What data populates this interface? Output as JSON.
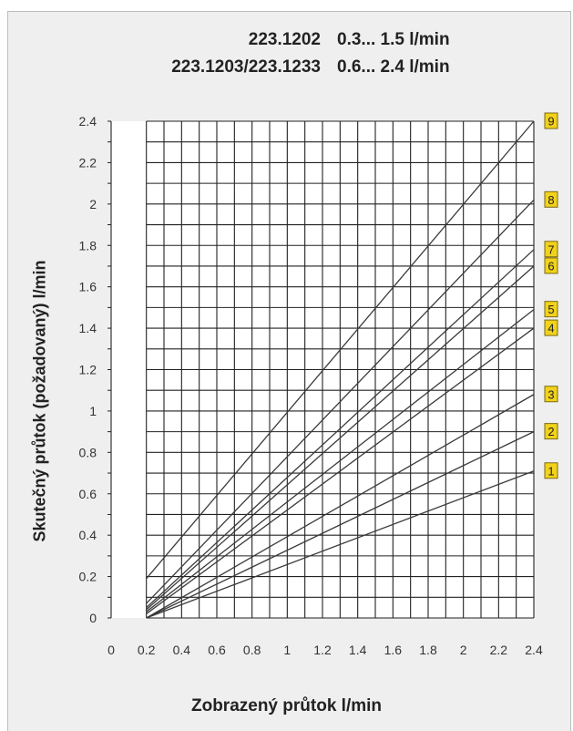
{
  "header": {
    "rows": [
      {
        "model": "223.1202",
        "range": "0.3... 1.5 l/min"
      },
      {
        "model": "223.1203/223.1233",
        "range": "0.6... 2.4 l/min"
      }
    ]
  },
  "chart_data": {
    "type": "line",
    "xlabel": "Zobrazený průtok  l/min",
    "ylabel": "Skutečný průtok (požadovaný)  l/min",
    "xlim": [
      0,
      2.4
    ],
    "ylim": [
      0,
      2.4
    ],
    "x_ticks": [
      "0",
      "0.2",
      "0.4",
      "0.6",
      "0.8",
      "1",
      "1.2",
      "1.4",
      "1.6",
      "1.8",
      "2",
      "2.2",
      "2.4"
    ],
    "y_ticks": [
      "0",
      "0.2",
      "0.4",
      "0.6",
      "0.8",
      "1",
      "1.2",
      "1.4",
      "1.6",
      "1.8",
      "2",
      "2.2",
      "2.4"
    ],
    "grid": true,
    "series": [
      {
        "label": "1",
        "x": [
          0.2,
          2.4
        ],
        "y": [
          0.0,
          0.71
        ]
      },
      {
        "label": "2",
        "x": [
          0.2,
          2.4
        ],
        "y": [
          0.0,
          0.9
        ]
      },
      {
        "label": "3",
        "x": [
          0.2,
          2.4
        ],
        "y": [
          0.0,
          1.08
        ]
      },
      {
        "label": "4",
        "x": [
          0.2,
          2.4
        ],
        "y": [
          0.02,
          1.4
        ]
      },
      {
        "label": "5",
        "x": [
          0.2,
          2.4
        ],
        "y": [
          0.03,
          1.49
        ]
      },
      {
        "label": "6",
        "x": [
          0.2,
          2.4
        ],
        "y": [
          0.04,
          1.7
        ]
      },
      {
        "label": "7",
        "x": [
          0.2,
          2.4
        ],
        "y": [
          0.05,
          1.78
        ]
      },
      {
        "label": "8",
        "x": [
          0.2,
          2.4
        ],
        "y": [
          0.07,
          2.02
        ]
      },
      {
        "label": "9",
        "x": [
          0.2,
          2.4
        ],
        "y": [
          0.19,
          2.4
        ]
      }
    ],
    "colors": {
      "line": "#3a3a3a",
      "grid": "#222222",
      "label_fill": "#f2d21b",
      "label_border": "#7a6a10",
      "plot_bg": "#ffffff",
      "panel_bg": "#efefef"
    }
  }
}
